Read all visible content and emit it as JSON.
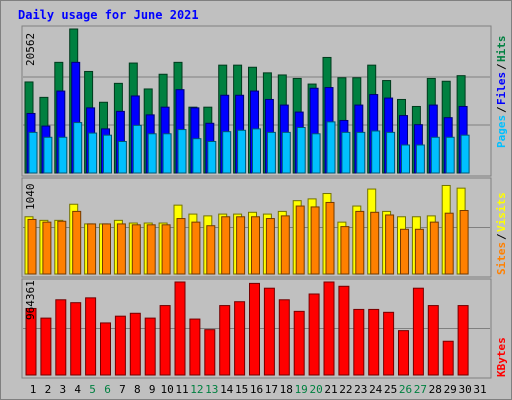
{
  "title": "Daily usage for June 2021",
  "colors": {
    "background": "#c0c0c0",
    "panel": "#c0c0c0",
    "title": "#0000ff",
    "hits": "#008040",
    "files": "#0000ff",
    "pages": "#00c0ff",
    "visits": "#ffff00",
    "sites": "#ff8000",
    "kbytes": "#ff0000",
    "weekend": "#008040",
    "weekday": "#000000"
  },
  "chart_data": [
    {
      "type": "bar",
      "name": "hits-files-pages",
      "ymax_label": "20562",
      "ymax": 20562,
      "categories": [
        "1",
        "2",
        "3",
        "4",
        "5",
        "6",
        "7",
        "8",
        "9",
        "10",
        "11",
        "12",
        "13",
        "14",
        "15",
        "16",
        "17",
        "18",
        "19",
        "20",
        "21",
        "22",
        "23",
        "24",
        "25",
        "26",
        "27",
        "28",
        "29",
        "30",
        "31"
      ],
      "weekend_days": [
        "5",
        "6",
        "12",
        "13",
        "19",
        "20",
        "26",
        "27"
      ],
      "series": [
        {
          "name": "Hits",
          "values": [
            13000,
            10800,
            15800,
            20562,
            14500,
            10100,
            12800,
            15700,
            12000,
            14100,
            15800,
            9400,
            9400,
            15400,
            15400,
            15100,
            14300,
            14000,
            13500,
            12700,
            16500,
            13600,
            13600,
            15400,
            13200,
            10500,
            9500,
            13500,
            13100,
            13900,
            0
          ]
        },
        {
          "name": "Files",
          "values": [
            8500,
            6700,
            11700,
            15800,
            9300,
            6300,
            8800,
            11000,
            8300,
            9400,
            11900,
            9300,
            7100,
            11100,
            11100,
            11700,
            10500,
            9700,
            8700,
            12100,
            12200,
            7500,
            9700,
            11200,
            10700,
            8200,
            6900,
            9700,
            7900,
            9500,
            0
          ]
        },
        {
          "name": "Pages",
          "values": [
            5800,
            5100,
            5100,
            7200,
            5700,
            5400,
            4500,
            6800,
            5600,
            5600,
            6200,
            4900,
            4500,
            5900,
            6100,
            6300,
            5800,
            5800,
            6500,
            5600,
            7300,
            5800,
            5800,
            6000,
            5800,
            4000,
            4000,
            5100,
            5100,
            5400,
            0
          ]
        }
      ],
      "legend": [
        "Pages",
        "Files",
        "Hits"
      ]
    },
    {
      "type": "bar",
      "name": "visits-sites",
      "ymax_label": "1040",
      "ymax": 1040,
      "series": [
        {
          "name": "Visits",
          "values": [
            640,
            600,
            600,
            780,
            560,
            560,
            600,
            570,
            570,
            570,
            770,
            670,
            650,
            670,
            670,
            690,
            670,
            700,
            820,
            840,
            900,
            580,
            760,
            950,
            700,
            640,
            640,
            650,
            990,
            960,
            0
          ]
        },
        {
          "name": "Sites",
          "values": [
            610,
            580,
            590,
            700,
            560,
            560,
            560,
            550,
            550,
            550,
            620,
            580,
            540,
            640,
            640,
            640,
            620,
            650,
            760,
            750,
            800,
            530,
            700,
            690,
            660,
            500,
            500,
            580,
            680,
            710,
            0
          ]
        }
      ],
      "legend": [
        "Sites",
        "Visits"
      ]
    },
    {
      "type": "bar",
      "name": "kbytes",
      "ymax_label": "964361",
      "ymax": 964361,
      "series": [
        {
          "name": "KBytes",
          "values": [
            690000,
            590000,
            780000,
            750000,
            800000,
            540000,
            610000,
            640000,
            590000,
            720000,
            964361,
            580000,
            470000,
            720000,
            760000,
            950000,
            900000,
            780000,
            660000,
            840000,
            964361,
            920000,
            680000,
            680000,
            650000,
            460000,
            900000,
            720000,
            350000,
            720000,
            0
          ]
        }
      ],
      "legend": [
        "KBytes"
      ]
    }
  ]
}
